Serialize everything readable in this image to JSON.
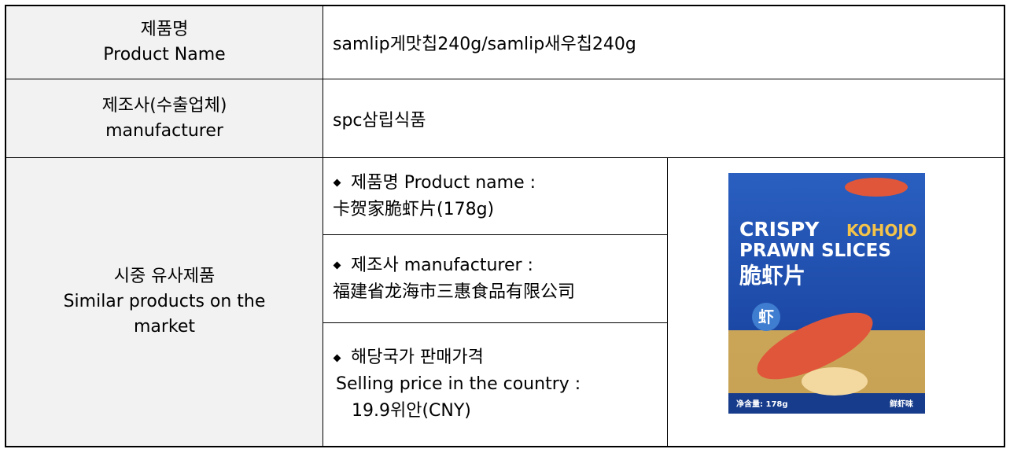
{
  "table": {
    "rows": [
      {
        "label": [
          "제품명",
          "Product Name"
        ],
        "value": "samlip게맛칩240g/samlip새우칩240g"
      },
      {
        "label": [
          "제조사(수출업체)",
          "manufacturer"
        ],
        "value": "spc삼립식품"
      }
    ],
    "similar": {
      "label": [
        "시중 유사제품",
        "Similar products on the",
        "market"
      ],
      "items": [
        [
          "제품명 Product name :",
          "卡贺家脆虾片(178g)"
        ],
        [
          "제조사 manufacturer :",
          "福建省龙海市三惠食品有限公司"
        ],
        [
          "해당국가 판매가격",
          "Selling price in the country :",
          "19.9위안(CNY)"
        ]
      ],
      "image_text": [
        "CRISPY",
        "KOHOJO",
        "PRAWN SLICES",
        "脆虾片",
        "虾",
        "净含量: 178g",
        "鲜虾味"
      ]
    }
  }
}
